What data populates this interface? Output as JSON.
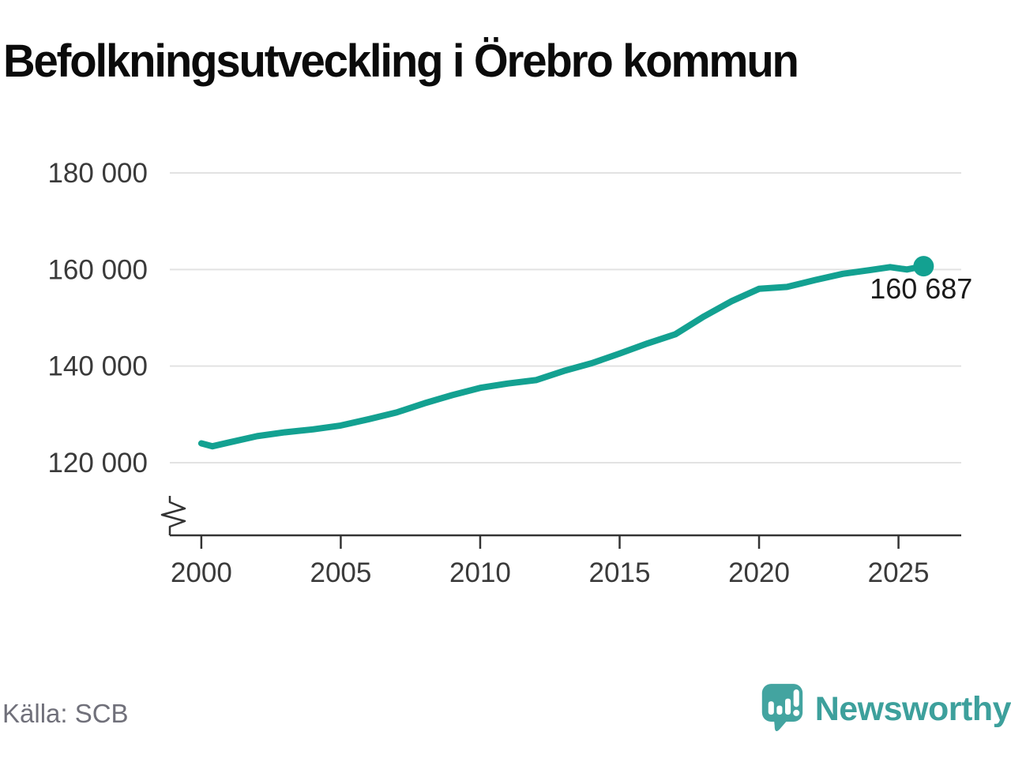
{
  "title": "Befolkningsutveckling i Örebro kommun",
  "source": "Källa: SCB",
  "branding": {
    "wordmark": "Newsworthy",
    "logo_icon": "newsworthy-speech-bubble-bar-chart-icon",
    "icon_color": "#43a4a0",
    "wordmark_color": "#3da09c"
  },
  "colors": {
    "line": "#13a191",
    "grid": "#e2e2e2",
    "axis": "#333333",
    "tick_text": "#3a3a3a",
    "annotation_text": "#1a1a1a",
    "background": "#ffffff"
  },
  "chart_data": {
    "type": "line",
    "title": "Befolkningsutveckling i Örebro kommun",
    "xlabel": "",
    "ylabel": "",
    "grid": "horizontal",
    "axis_break": true,
    "legend": "none",
    "xlim": [
      1998.87,
      2027.25
    ],
    "ylim_visible": [
      120000,
      180000
    ],
    "xticks": [
      2000,
      2005,
      2010,
      2015,
      2020,
      2025
    ],
    "xtick_labels": [
      "2000",
      "2005",
      "2010",
      "2015",
      "2020",
      "2025"
    ],
    "yticks": [
      120000,
      140000,
      160000,
      180000
    ],
    "ytick_labels": [
      "120 000",
      "140 000",
      "160 000",
      "180 000"
    ],
    "x": [
      2000,
      2000.4,
      2001,
      2002,
      2003,
      2004,
      2005,
      2006,
      2007,
      2008,
      2009,
      2010,
      2011,
      2012,
      2013,
      2014,
      2015,
      2016,
      2017,
      2018,
      2019,
      2020,
      2021,
      2022,
      2023,
      2024,
      2024.7,
      2025.3,
      2025.9
    ],
    "values": [
      124000,
      123400,
      124200,
      125500,
      126300,
      126900,
      127700,
      129000,
      130400,
      132300,
      134000,
      135500,
      136400,
      137100,
      139000,
      140600,
      142600,
      144700,
      146600,
      150200,
      153400,
      156000,
      156400,
      157800,
      159100,
      159900,
      160500,
      160000,
      160687
    ],
    "last_point": {
      "x": 2025.9,
      "value": 160687,
      "label": "160 687"
    }
  }
}
